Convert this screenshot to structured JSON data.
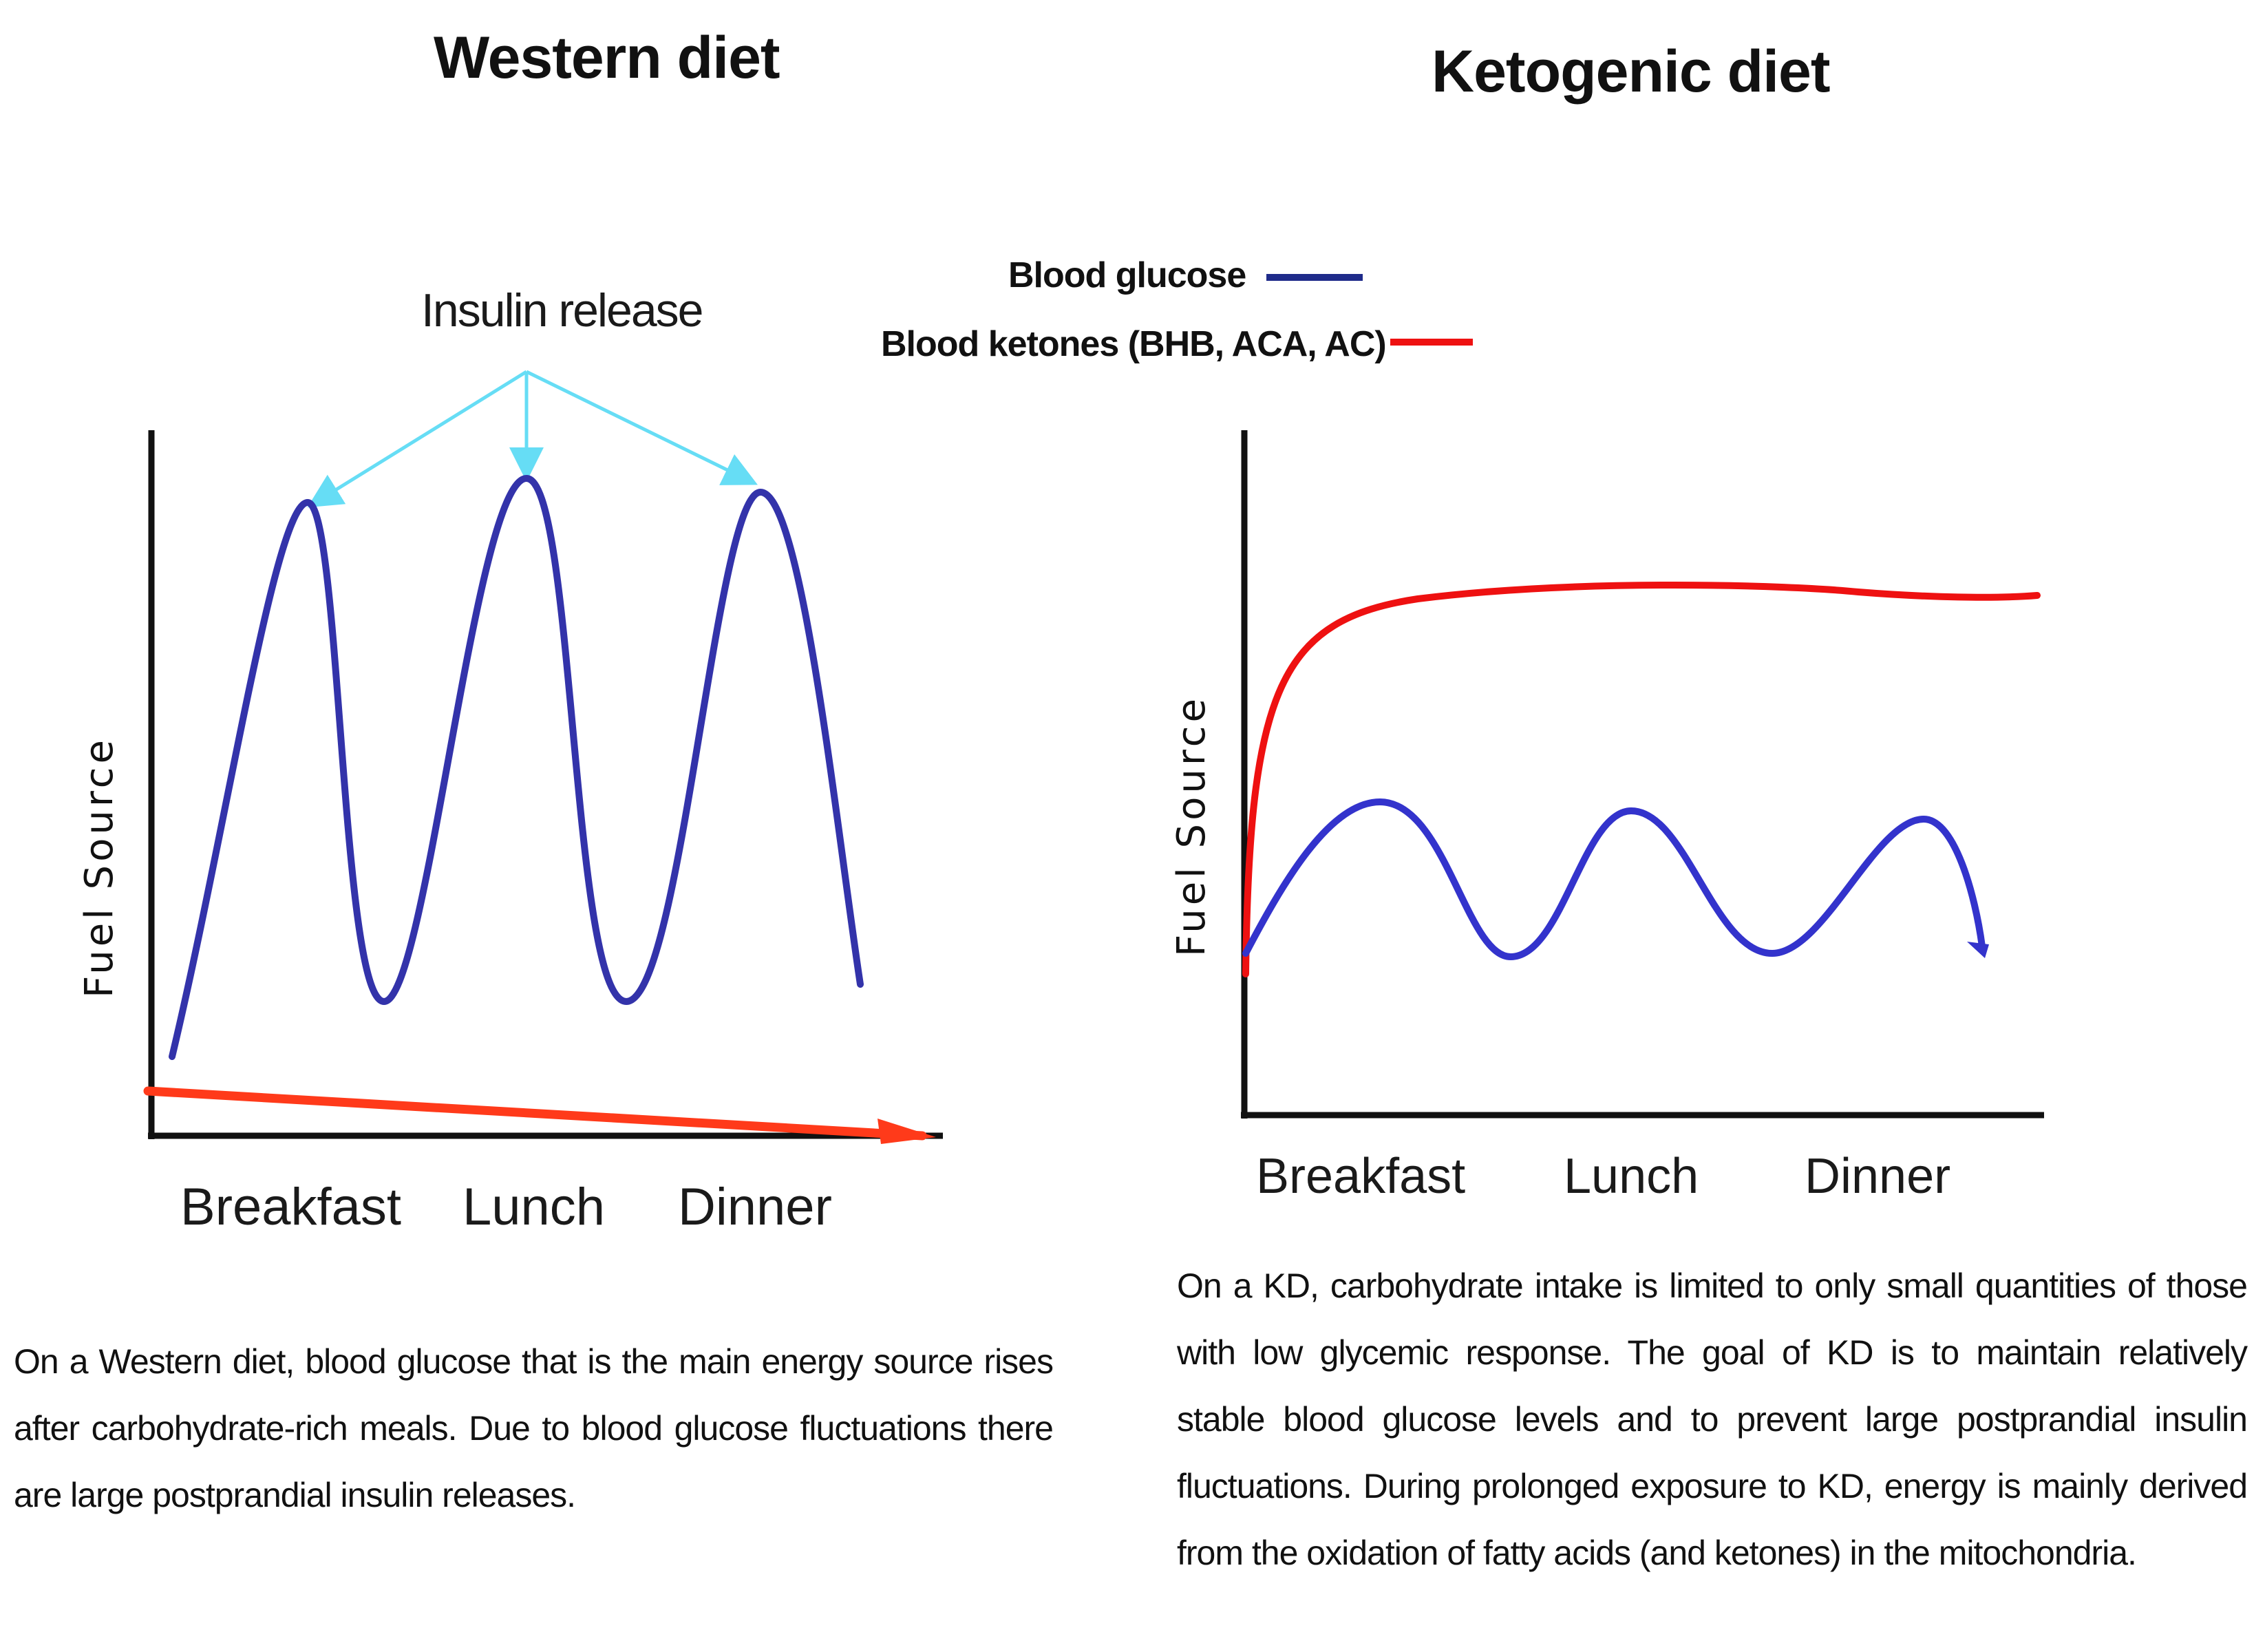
{
  "western": {
    "title": "Western diet",
    "annotation": "Insulin release",
    "y_label": "Fuel Source",
    "x_labels": [
      "Breakfast",
      "Lunch",
      "Dinner"
    ],
    "caption": "On a Western diet, blood glucose that is the main energy source rises after carbohydrate-rich meals. Due to blood glucose fluctuations there are large postprandial insulin releases."
  },
  "ketogenic": {
    "title": "Ketogenic diet",
    "y_label": "Fuel Source",
    "x_labels": [
      "Breakfast",
      "Lunch",
      "Dinner"
    ],
    "caption": "On a KD, carbohydrate intake is limited to only small quantities of those with low glycemic response. The goal of KD is to maintain relatively stable blood glucose levels and to prevent large postprandial insulin fluctuations. During prolonged exposure to KD, energy is mainly derived from the oxidation of fatty acids (and ketones) in the mitochondria."
  },
  "legend": {
    "glucose_label": "Blood glucose",
    "ketones_label": "Blood ketones (BHB, ACA, AC)"
  },
  "colors": {
    "glucose": "#3333aa",
    "ketones": "#ee1111",
    "ketones_western": "#ff3a1a",
    "insulin_arrow": "#66ddf5",
    "axis": "#111111"
  }
}
